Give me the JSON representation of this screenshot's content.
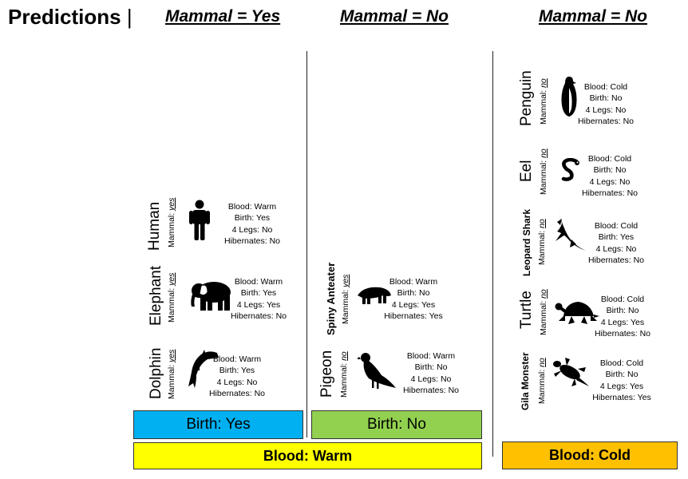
{
  "title": "Predictions",
  "cursor": "|",
  "columns": [
    {
      "label": "Mammal = Yes"
    },
    {
      "label": "Mammal = No"
    },
    {
      "label": "Mammal = No"
    }
  ],
  "feature_labels": {
    "blood": "Blood:",
    "birth": "Birth:",
    "legs": "4 Legs:",
    "hibernates": "Hibernates:"
  },
  "mammal_label": "Mammal:",
  "animals": [
    {
      "name": "Human",
      "mammal": "yes",
      "blood": "Warm",
      "birth": "Yes",
      "legs": "No",
      "hibernates": "No",
      "icon": "human-icon"
    },
    {
      "name": "Elephant",
      "mammal": "yes",
      "blood": "Warm",
      "birth": "Yes",
      "legs": "Yes",
      "hibernates": "No",
      "icon": "elephant-icon"
    },
    {
      "name": "Dolphin",
      "mammal": "yes",
      "blood": "Warm",
      "birth": "Yes",
      "legs": "No",
      "hibernates": "No",
      "icon": "dolphin-icon"
    },
    {
      "name": "Spiny Anteater",
      "mammal": "yes",
      "blood": "Warm",
      "birth": "No",
      "legs": "Yes",
      "hibernates": "Yes",
      "icon": "anteater-icon"
    },
    {
      "name": "Pigeon",
      "mammal": "no",
      "blood": "Warm",
      "birth": "No",
      "legs": "No",
      "hibernates": "No",
      "icon": "pigeon-icon"
    },
    {
      "name": "Penguin",
      "mammal": "no",
      "blood": "Cold",
      "birth": "No",
      "legs": "No",
      "hibernates": "No",
      "icon": "penguin-icon"
    },
    {
      "name": "Eel",
      "mammal": "no",
      "blood": "Cold",
      "birth": "No",
      "legs": "No",
      "hibernates": "No",
      "icon": "eel-icon"
    },
    {
      "name": "Leopard Shark",
      "mammal": "no",
      "blood": "Cold",
      "birth": "Yes",
      "legs": "No",
      "hibernates": "No",
      "icon": "shark-icon"
    },
    {
      "name": "Turtle",
      "mammal": "no",
      "blood": "Cold",
      "birth": "No",
      "legs": "Yes",
      "hibernates": "No",
      "icon": "turtle-icon"
    },
    {
      "name": "Gila Monster",
      "mammal": "no",
      "blood": "Cold",
      "birth": "No",
      "legs": "Yes",
      "hibernates": "Yes",
      "icon": "lizard-icon"
    }
  ],
  "boxes": {
    "birth_yes": {
      "label": "Birth: Yes",
      "color": "#00b0f0"
    },
    "birth_no": {
      "label": "Birth: No",
      "color": "#92d050"
    },
    "blood_warm": {
      "label": "Blood: Warm",
      "color": "#ffff00"
    },
    "blood_cold": {
      "label": "Blood: Cold",
      "color": "#ffc000"
    }
  }
}
